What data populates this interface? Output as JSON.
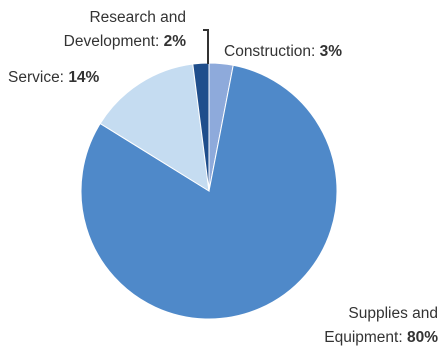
{
  "chart_data": {
    "type": "pie",
    "title": "",
    "unit": "%",
    "slices": [
      {
        "name": "Construction",
        "value": 3,
        "color": "#8eaadb",
        "label_lines": [
          "Construction: "
        ]
      },
      {
        "name": "Supplies and Equipment",
        "value": 80,
        "color": "#4f89c9",
        "label_lines": [
          "Supplies and",
          "Equipment: "
        ]
      },
      {
        "name": "Service",
        "value": 14,
        "color": "#c5dcf1",
        "label_lines": [
          "Service: "
        ]
      },
      {
        "name": "Research and Development",
        "value": 2,
        "color": "#1f4e8c",
        "label_lines": [
          "Research and",
          "Development: "
        ]
      }
    ],
    "value_texts": [
      "3%",
      "80%",
      "14%",
      "2%"
    ],
    "legend": "none",
    "start_angle": "12 o'clock, clockwise"
  }
}
